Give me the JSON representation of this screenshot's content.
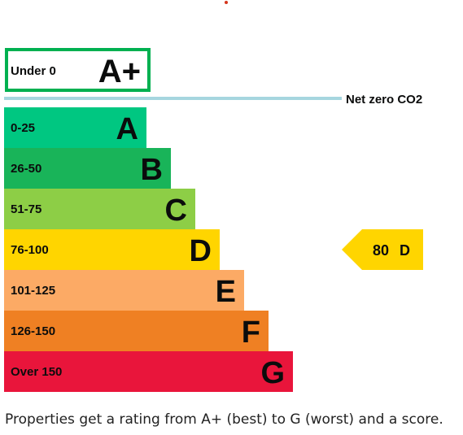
{
  "chart_data": {
    "type": "bar",
    "title": "",
    "xlabel": "",
    "ylabel": "",
    "top_band": {
      "range_label": "Under 0",
      "letter": "A+",
      "color": "#00b050",
      "line_label": "Net zero CO2",
      "line_color": "#a6d6df"
    },
    "bands": [
      {
        "range_label": "0-25",
        "letter": "A",
        "color": "#00c781",
        "relative_length": 1
      },
      {
        "range_label": "26-50",
        "letter": "B",
        "color": "#19b459",
        "relative_length": 2
      },
      {
        "range_label": "51-75",
        "letter": "C",
        "color": "#8dce46",
        "relative_length": 3
      },
      {
        "range_label": "76-100",
        "letter": "D",
        "color": "#ffd500",
        "relative_length": 4
      },
      {
        "range_label": "101-125",
        "letter": "E",
        "color": "#fcaa65",
        "relative_length": 5
      },
      {
        "range_label": "126-150",
        "letter": "F",
        "color": "#ef8023",
        "relative_length": 6
      },
      {
        "range_label": "Over 150",
        "letter": "G",
        "color": "#e9153b",
        "relative_length": 7
      }
    ],
    "current": {
      "score": "80",
      "rating": "D",
      "score_value": 80,
      "band_index": 3,
      "color": "#ffd500"
    }
  },
  "caption": "Properties get a rating from A+ (best) to G (worst) and a score."
}
